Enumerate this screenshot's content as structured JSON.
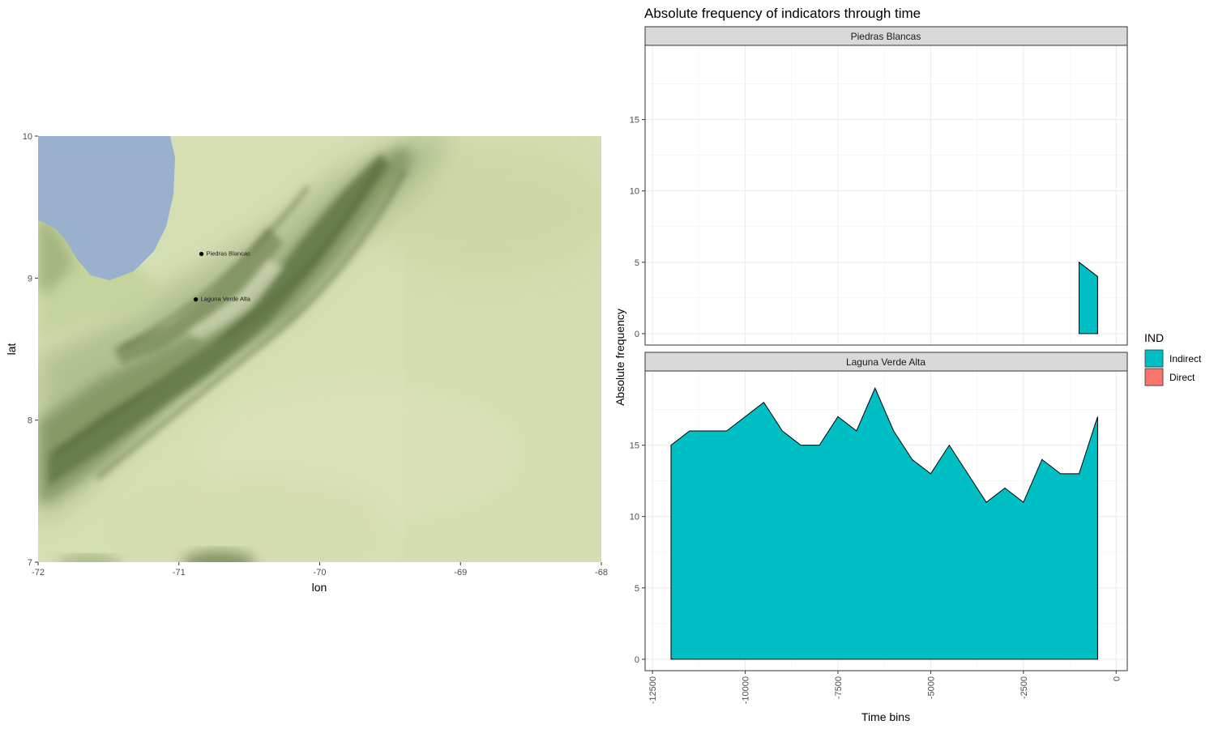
{
  "map": {
    "xlabel": "lon",
    "ylabel": "lat",
    "xlim": [
      -72,
      -68
    ],
    "ylim": [
      7,
      10
    ],
    "x_ticks": [
      -72,
      -71,
      -70,
      -69,
      -68
    ],
    "y_ticks": [
      7,
      8,
      9,
      10
    ],
    "x_tick_labels": [
      "-72",
      "-71",
      "-70",
      "-69",
      "-68"
    ],
    "y_tick_labels": [
      "7",
      "8",
      "9",
      "10"
    ],
    "sites": [
      {
        "name": "Piedras Blancas",
        "lon": -70.84,
        "lat": 9.17
      },
      {
        "name": "Laguna Verde Alta",
        "lon": -70.88,
        "lat": 8.85
      }
    ],
    "colors": {
      "water": "#99b1cc",
      "lowland": "#d6dfb4",
      "mountain": "#6f8250"
    }
  },
  "chart_data": {
    "type": "area",
    "title": "Absolute frequency of indicators through time",
    "xlabel": "Time bins",
    "ylabel": "Absolute frequency",
    "xlim": [
      -12700,
      300
    ],
    "x_ticks": [
      -12500,
      -10000,
      -7500,
      -5000,
      -2500,
      0
    ],
    "x_tick_labels": [
      "-12500",
      "-10000",
      "-7500",
      "-5000",
      "-2500",
      "0"
    ],
    "y_ticks": [
      0,
      5,
      10,
      15
    ],
    "y_tick_labels": [
      "0",
      "5",
      "10",
      "15"
    ],
    "legend": {
      "title": "IND",
      "placement": "right",
      "entries": [
        {
          "label": "Indirect",
          "color": "#00bfc4"
        },
        {
          "label": "Direct",
          "color": "#f8766d"
        }
      ]
    },
    "panels": [
      {
        "strip": "Piedras Blancas",
        "ylim": [
          -0.8,
          20.2
        ],
        "series": [
          {
            "name": "Indirect",
            "color": "#00bfc4",
            "x": [
              -1000,
              -500
            ],
            "y": [
              5,
              4
            ]
          }
        ]
      },
      {
        "strip": "Laguna Verde Alta",
        "ylim": [
          -0.8,
          20.2
        ],
        "series": [
          {
            "name": "Indirect",
            "color": "#00bfc4",
            "x": [
              -12000,
              -11500,
              -11000,
              -10500,
              -10000,
              -9500,
              -9000,
              -8500,
              -8000,
              -7500,
              -7000,
              -6500,
              -6000,
              -5500,
              -5000,
              -4500,
              -4000,
              -3500,
              -3000,
              -2500,
              -2000,
              -1500,
              -1000,
              -500
            ],
            "y": [
              15,
              16,
              16,
              16,
              17,
              18,
              16,
              15,
              15,
              17,
              16,
              19,
              16,
              14,
              13,
              15,
              13,
              11,
              12,
              11,
              14,
              13,
              13,
              17
            ]
          }
        ]
      }
    ]
  }
}
